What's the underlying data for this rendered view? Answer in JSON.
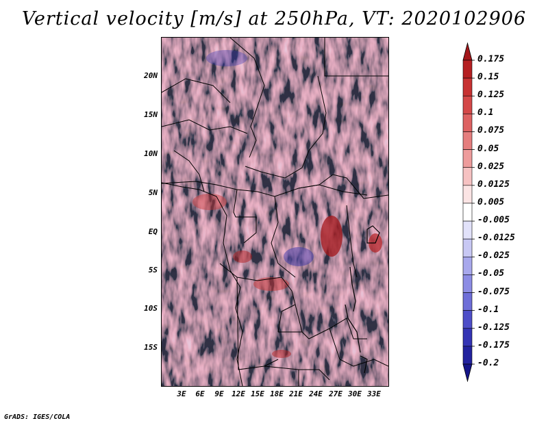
{
  "title": "Vertical velocity [m/s] at 250hPa, VT: 2020102906",
  "credit": "GrADS: IGES/COLA",
  "map": {
    "region": "Central Africa",
    "variable": "Vertical velocity",
    "level": "250hPa",
    "valid_time": "2020102906",
    "lat_labels": [
      "20N",
      "15N",
      "10N",
      "5N",
      "EQ",
      "5S",
      "10S",
      "15S"
    ],
    "lon_labels": [
      "3E",
      "6E",
      "9E",
      "12E",
      "15E",
      "18E",
      "21E",
      "24E",
      "27E",
      "30E",
      "33E"
    ]
  },
  "colorbar": {
    "labels": [
      "0.175",
      "0.15",
      "0.125",
      "0.1",
      "0.075",
      "0.05",
      "0.025",
      "0.0125",
      "0.005",
      "-0.005",
      "-0.0125",
      "-0.025",
      "-0.05",
      "-0.075",
      "-0.1",
      "-0.125",
      "-0.175",
      "-0.2"
    ],
    "colors": [
      "#a3161a",
      "#b52022",
      "#c73232",
      "#d44848",
      "#dd6262",
      "#e57e7e",
      "#ee9c9c",
      "#f6c2c2",
      "#fbe4e4",
      "#ffffff",
      "#e2e2fa",
      "#c8c8f4",
      "#a8a8ec",
      "#8c8ce4",
      "#6e6ed8",
      "#4e4ec8",
      "#3434b4",
      "#22229e",
      "#141488"
    ]
  }
}
